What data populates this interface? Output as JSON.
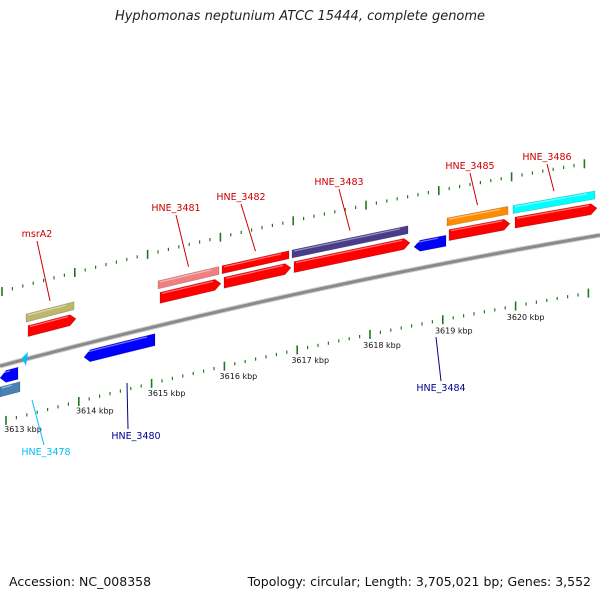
{
  "title": "Hyphomonas neptunium ATCC 15444, complete genome",
  "footer": {
    "accession": "Accession: NC_008358",
    "summary": "Topology: circular; Length: 3,705,021 bp; Genes: 3,552"
  },
  "colors": {
    "backbone": "#8a8a8a",
    "tick": "#1f7a1f",
    "forward_label": "#cc0000",
    "reverse_label": "#00008b",
    "cds_red": "#ff0000"
  },
  "scale": {
    "unit": "kbp",
    "labels": [
      {
        "kbp": 3613,
        "text": "3613 kbp"
      },
      {
        "kbp": 3614,
        "text": "3614 kbp"
      },
      {
        "kbp": 3615,
        "text": "3615 kbp"
      },
      {
        "kbp": 3616,
        "text": "3616 kbp"
      },
      {
        "kbp": 3617,
        "text": "3617 kbp"
      },
      {
        "kbp": 3618,
        "text": "3618 kbp"
      },
      {
        "kbp": 3619,
        "text": "3619 kbp"
      },
      {
        "kbp": 3620,
        "text": "3620 kbp"
      }
    ]
  },
  "genes": [
    {
      "id": "msrA2",
      "label": "msrA2",
      "strand": "+",
      "color": "#bdb76b",
      "label_color": "#cc0000"
    },
    {
      "id": "HNE_3481",
      "label": "HNE_3481",
      "strand": "+",
      "color": "#f08080",
      "label_color": "#cc0000"
    },
    {
      "id": "HNE_3482",
      "label": "HNE_3482",
      "strand": "+",
      "color": "#ff0000",
      "label_color": "#cc0000"
    },
    {
      "id": "HNE_3483",
      "label": "HNE_3483",
      "strand": "+",
      "color": "#483d8b",
      "label_color": "#cc0000"
    },
    {
      "id": "HNE_3485",
      "label": "HNE_3485",
      "strand": "+",
      "color": "#ff8c00",
      "label_color": "#cc0000"
    },
    {
      "id": "HNE_3486",
      "label": "HNE_3486",
      "strand": "+",
      "color": "#00ffff",
      "label_color": "#cc0000"
    },
    {
      "id": "HNE_3480",
      "label": "HNE_3480",
      "strand": "-",
      "color": "#0000ff",
      "label_color": "#00008b"
    },
    {
      "id": "HNE_3484",
      "label": "HNE_3484",
      "strand": "-",
      "color": "#0000ff",
      "label_color": "#00008b"
    },
    {
      "id": "HNE_3478",
      "label": "HNE_3478",
      "strand": "-",
      "color": "#00bfff",
      "label_color": "#00bfff"
    }
  ]
}
